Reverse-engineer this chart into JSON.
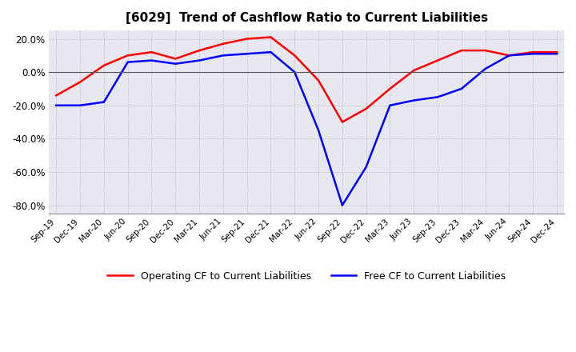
{
  "title": "[6029]  Trend of Cashflow Ratio to Current Liabilities",
  "title_fontsize": 11,
  "x_labels": [
    "Sep-19",
    "Dec-19",
    "Mar-20",
    "Jun-20",
    "Sep-20",
    "Dec-20",
    "Mar-21",
    "Jun-21",
    "Sep-21",
    "Dec-21",
    "Mar-22",
    "Jun-22",
    "Sep-22",
    "Dec-22",
    "Mar-23",
    "Jun-23",
    "Sep-23",
    "Dec-23",
    "Mar-24",
    "Jun-24",
    "Sep-24",
    "Dec-24"
  ],
  "operating_cf": [
    -0.14,
    -0.06,
    0.04,
    0.1,
    0.12,
    0.08,
    0.13,
    0.17,
    0.2,
    0.21,
    0.1,
    -0.05,
    -0.3,
    -0.22,
    -0.1,
    0.01,
    0.07,
    0.13,
    0.13,
    0.1,
    0.12,
    0.12
  ],
  "free_cf": [
    -0.2,
    -0.2,
    -0.18,
    0.06,
    0.07,
    0.05,
    0.07,
    0.1,
    0.11,
    0.12,
    0.0,
    -0.35,
    -0.8,
    -0.57,
    -0.2,
    -0.17,
    -0.15,
    -0.1,
    0.02,
    0.1,
    0.11,
    0.11
  ],
  "ylim": [
    -0.85,
    0.25
  ],
  "yticks": [
    0.2,
    0.0,
    -0.2,
    -0.4,
    -0.6,
    -0.8
  ],
  "operating_color": "#ff0000",
  "free_color": "#0000ff",
  "grid_color": "#aaaaaa",
  "plot_bg_color": "#e8e8f0",
  "bg_color": "#ffffff",
  "legend_op": "Operating CF to Current Liabilities",
  "legend_free": "Free CF to Current Liabilities"
}
